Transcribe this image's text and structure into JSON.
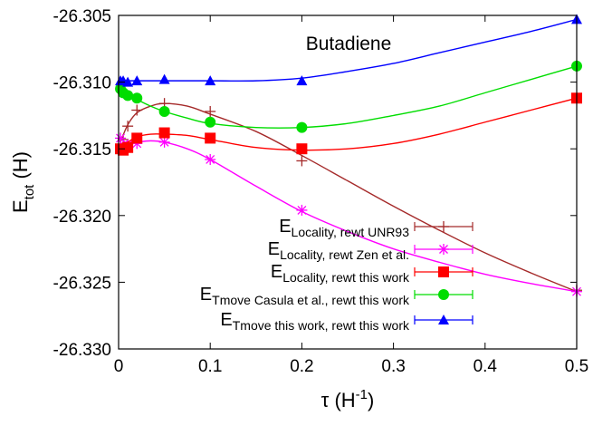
{
  "chart_data": {
    "type": "scatter",
    "title": "Butadiene",
    "xlabel": {
      "main": "τ (H",
      "sup": "-1",
      "tail": ")"
    },
    "ylabel": {
      "main": "E",
      "sub": "tot",
      "tail": " (H)"
    },
    "xlim": [
      0,
      0.5
    ],
    "ylim": [
      -26.33,
      -26.305
    ],
    "xticks": [
      {
        "value": 0,
        "label": "0"
      },
      {
        "value": 0.1,
        "label": "0.1"
      },
      {
        "value": 0.2,
        "label": "0.2"
      },
      {
        "value": 0.3,
        "label": "0.3"
      },
      {
        "value": 0.4,
        "label": "0.4"
      },
      {
        "value": 0.5,
        "label": "0.5"
      }
    ],
    "yticks": [
      {
        "value": -26.305,
        "label": "-26.305"
      },
      {
        "value": -26.31,
        "label": "-26.310"
      },
      {
        "value": -26.315,
        "label": "-26.315"
      },
      {
        "value": -26.32,
        "label": "-26.320"
      },
      {
        "value": -26.325,
        "label": "-26.325"
      },
      {
        "value": -26.33,
        "label": "-26.330"
      }
    ],
    "grid": false,
    "legend_position": "bottom-right",
    "series": [
      {
        "name": {
          "main": "E",
          "sub": "Locality, rewt UNR93"
        },
        "color": "#a52a2a",
        "marker": "plus",
        "x": [
          0.005,
          0.01,
          0.02,
          0.05,
          0.1,
          0.2,
          0.5
        ],
        "y": [
          -26.3143,
          -26.3133,
          -26.3121,
          -26.3116,
          -26.3122,
          -26.3159,
          -26.3256
        ],
        "fit": [
          [
            0.002,
            -26.3145
          ],
          [
            0.01,
            -26.3132
          ],
          [
            0.02,
            -26.3123
          ],
          [
            0.035,
            -26.3118
          ],
          [
            0.05,
            -26.3116
          ],
          [
            0.075,
            -26.3118
          ],
          [
            0.1,
            -26.3124
          ],
          [
            0.15,
            -26.3137
          ],
          [
            0.2,
            -26.3155
          ],
          [
            0.25,
            -26.3174
          ],
          [
            0.3,
            -26.3193
          ],
          [
            0.35,
            -26.3211
          ],
          [
            0.4,
            -26.3228
          ],
          [
            0.45,
            -26.3243
          ],
          [
            0.5,
            -26.3257
          ]
        ]
      },
      {
        "name": {
          "main": "E",
          "sub": "Locality, rewt Zen et al."
        },
        "color": "#ff00ff",
        "marker": "star",
        "x": [
          0.002,
          0.005,
          0.01,
          0.02,
          0.05,
          0.1,
          0.2,
          0.5
        ],
        "y": [
          -26.3142,
          -26.3147,
          -26.3147,
          -26.3146,
          -26.3145,
          -26.3158,
          -26.3196,
          -26.3257
        ],
        "fit": [
          [
            0.002,
            -26.3146
          ],
          [
            0.01,
            -26.3146
          ],
          [
            0.02,
            -26.3145
          ],
          [
            0.035,
            -26.3144
          ],
          [
            0.05,
            -26.3145
          ],
          [
            0.075,
            -26.315
          ],
          [
            0.1,
            -26.3158
          ],
          [
            0.15,
            -26.3178
          ],
          [
            0.2,
            -26.3197
          ],
          [
            0.25,
            -26.3212
          ],
          [
            0.3,
            -26.3225
          ],
          [
            0.35,
            -26.3235
          ],
          [
            0.4,
            -26.3244
          ],
          [
            0.45,
            -26.3251
          ],
          [
            0.5,
            -26.3257
          ]
        ]
      },
      {
        "name": {
          "main": "E",
          "sub": "Locality, rewt this work"
        },
        "color": "#ff0000",
        "marker": "square",
        "x": [
          0.002,
          0.005,
          0.01,
          0.02,
          0.05,
          0.1,
          0.2,
          0.5
        ],
        "y": [
          -26.315,
          -26.3151,
          -26.3149,
          -26.3142,
          -26.3138,
          -26.3142,
          -26.315,
          -26.3112
        ],
        "fit": [
          [
            0.002,
            -26.3148
          ],
          [
            0.01,
            -26.3145
          ],
          [
            0.02,
            -26.3141
          ],
          [
            0.035,
            -26.3139
          ],
          [
            0.05,
            -26.3139
          ],
          [
            0.075,
            -26.314
          ],
          [
            0.1,
            -26.3143
          ],
          [
            0.15,
            -26.3149
          ],
          [
            0.2,
            -26.3151
          ],
          [
            0.25,
            -26.315
          ],
          [
            0.3,
            -26.3146
          ],
          [
            0.35,
            -26.3139
          ],
          [
            0.4,
            -26.313
          ],
          [
            0.45,
            -26.3121
          ],
          [
            0.5,
            -26.3112
          ]
        ]
      },
      {
        "name": {
          "main": "E",
          "sub": "Tmove Casula et al., rewt this work"
        },
        "color": "#00dd00",
        "marker": "circle",
        "x": [
          0.002,
          0.005,
          0.01,
          0.02,
          0.05,
          0.1,
          0.2,
          0.5
        ],
        "y": [
          -26.3105,
          -26.3108,
          -26.311,
          -26.3112,
          -26.3122,
          -26.313,
          -26.3134,
          -26.3088
        ],
        "fit": [
          [
            0.002,
            -26.3106
          ],
          [
            0.01,
            -26.3109
          ],
          [
            0.02,
            -26.3113
          ],
          [
            0.035,
            -26.3118
          ],
          [
            0.05,
            -26.3122
          ],
          [
            0.075,
            -26.3127
          ],
          [
            0.1,
            -26.3131
          ],
          [
            0.15,
            -26.3134
          ],
          [
            0.2,
            -26.3134
          ],
          [
            0.25,
            -26.3131
          ],
          [
            0.3,
            -26.3125
          ],
          [
            0.35,
            -26.3118
          ],
          [
            0.4,
            -26.3108
          ],
          [
            0.45,
            -26.3098
          ],
          [
            0.5,
            -26.3088
          ]
        ]
      },
      {
        "name": {
          "main": "E",
          "sub": "Tmove this work, rewt this work"
        },
        "color": "#0000ff",
        "marker": "triangle",
        "x": [
          0.002,
          0.005,
          0.01,
          0.02,
          0.05,
          0.1,
          0.2,
          0.5
        ],
        "y": [
          -26.3099,
          -26.3099,
          -26.31,
          -26.3099,
          -26.3098,
          -26.3099,
          -26.3099,
          -26.3053
        ],
        "fit": [
          [
            0.002,
            -26.3099
          ],
          [
            0.02,
            -26.3099
          ],
          [
            0.05,
            -26.3099
          ],
          [
            0.1,
            -26.3099
          ],
          [
            0.15,
            -26.3099
          ],
          [
            0.2,
            -26.3097
          ],
          [
            0.25,
            -26.3092
          ],
          [
            0.3,
            -26.3086
          ],
          [
            0.35,
            -26.3078
          ],
          [
            0.4,
            -26.307
          ],
          [
            0.45,
            -26.3062
          ],
          [
            0.5,
            -26.3053
          ]
        ]
      }
    ]
  }
}
